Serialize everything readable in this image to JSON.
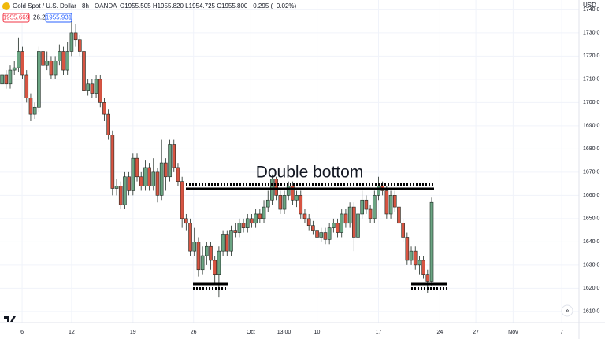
{
  "header": {
    "symbol": "Gold Spot / U.S. Dollar · 8h · OANDA",
    "ohlc": "O1955.505 H1955.820 L1954.725 C1955.800 −0.295 (−0.02%)",
    "sell": "1955.669",
    "spread": "26.2",
    "buy": "1955.931",
    "currency": "USD"
  },
  "chart_data": {
    "type": "candlestick",
    "annotation": "Double bottom",
    "up_color": "#6ba583",
    "down_color": "#d75442",
    "grid": true,
    "xlim": [
      -0.5,
      141
    ],
    "xticks": [
      {
        "value": 4.9,
        "label": "6"
      },
      {
        "value": 17,
        "label": "12"
      },
      {
        "value": 32,
        "label": "19"
      },
      {
        "value": 46.8,
        "label": "26"
      },
      {
        "value": 60.8,
        "label": "Oct"
      },
      {
        "value": 68.9,
        "label": "13:00"
      },
      {
        "value": 77,
        "label": "10"
      },
      {
        "value": 92,
        "label": "17"
      },
      {
        "value": 107,
        "label": "24"
      },
      {
        "value": 115.8,
        "label": "27"
      },
      {
        "value": 124.9,
        "label": "Nov"
      },
      {
        "value": 136.8,
        "label": "7"
      }
    ],
    "ylim": [
      1605.2,
      1744.2
    ],
    "yticks": [
      {
        "value": 1610,
        "label": "1610.0"
      },
      {
        "value": 1620,
        "label": "1620.0"
      },
      {
        "value": 1630,
        "label": "1630.0"
      },
      {
        "value": 1640,
        "label": "1640.0"
      },
      {
        "value": 1650,
        "label": "1650.0"
      },
      {
        "value": 1660,
        "label": "1660.0"
      },
      {
        "value": 1670,
        "label": "1670.0"
      },
      {
        "value": 1680,
        "label": "1680.0"
      },
      {
        "value": 1690,
        "label": "1690.0"
      },
      {
        "value": 1700,
        "label": "1700.0"
      },
      {
        "value": 1710,
        "label": "1710.0"
      },
      {
        "value": 1720,
        "label": "1720.0"
      },
      {
        "value": 1730,
        "label": "1730.0"
      },
      {
        "value": 1740,
        "label": "1740.0"
      }
    ],
    "open": [
      1708,
      1712,
      1708,
      1714,
      1715,
      1722,
      1712,
      1702,
      1695,
      1698,
      1722,
      1716,
      1718,
      1712,
      1718,
      1722,
      1714,
      1722,
      1730,
      1727,
      1722,
      1705,
      1708,
      1704,
      1710,
      1700,
      1695,
      1686,
      1663,
      1664,
      1656,
      1668,
      1662,
      1676,
      1668,
      1664,
      1672,
      1664,
      1670,
      1660,
      1674,
      1668,
      1682,
      1672,
      1666,
      1650,
      1648,
      1636,
      1640,
      1628,
      1634,
      1638,
      1632,
      1626,
      1636,
      1643,
      1636,
      1645,
      1644,
      1648,
      1646,
      1650,
      1648,
      1652,
      1650,
      1655,
      1658,
      1667,
      1660,
      1654,
      1660,
      1664,
      1658,
      1660,
      1652,
      1650,
      1647,
      1645,
      1642,
      1644,
      1641,
      1646,
      1648,
      1644,
      1652,
      1648,
      1655,
      1642,
      1652,
      1658,
      1654,
      1650,
      1660,
      1664,
      1662,
      1652,
      1660,
      1655,
      1648,
      1642,
      1632,
      1636,
      1630,
      1632,
      1626,
      1623
    ],
    "high": [
      1715,
      1714,
      1716,
      1718,
      1728,
      1724,
      1714,
      1704,
      1700,
      1724,
      1724,
      1722,
      1720,
      1720,
      1725,
      1724,
      1726,
      1735,
      1734,
      1729,
      1724,
      1710,
      1710,
      1712,
      1712,
      1702,
      1697,
      1688,
      1667,
      1666,
      1670,
      1670,
      1678,
      1678,
      1670,
      1675,
      1674,
      1676,
      1672,
      1684,
      1676,
      1684,
      1684,
      1674,
      1668,
      1652,
      1650,
      1646,
      1642,
      1638,
      1640,
      1640,
      1634,
      1638,
      1645,
      1645,
      1647,
      1648,
      1650,
      1650,
      1652,
      1652,
      1654,
      1654,
      1658,
      1662,
      1669,
      1668,
      1662,
      1662,
      1666,
      1666,
      1662,
      1662,
      1654,
      1652,
      1649,
      1647,
      1646,
      1646,
      1648,
      1650,
      1650,
      1654,
      1654,
      1657,
      1657,
      1654,
      1662,
      1660,
      1656,
      1662,
      1668,
      1666,
      1664,
      1662,
      1662,
      1657,
      1650,
      1644,
      1638,
      1638,
      1634,
      1634,
      1628,
      1659
    ],
    "low": [
      1705,
      1706,
      1706,
      1712,
      1713,
      1710,
      1700,
      1692,
      1693,
      1696,
      1714,
      1714,
      1710,
      1710,
      1716,
      1712,
      1712,
      1720,
      1724,
      1720,
      1703,
      1703,
      1702,
      1702,
      1698,
      1692,
      1684,
      1660,
      1660,
      1654,
      1654,
      1660,
      1660,
      1666,
      1662,
      1662,
      1662,
      1662,
      1657,
      1658,
      1662,
      1666,
      1670,
      1664,
      1646,
      1645,
      1634,
      1634,
      1625,
      1626,
      1630,
      1628,
      1622,
      1616,
      1634,
      1634,
      1634,
      1642,
      1642,
      1644,
      1644,
      1646,
      1646,
      1648,
      1648,
      1653,
      1656,
      1658,
      1652,
      1652,
      1658,
      1656,
      1655,
      1650,
      1648,
      1645,
      1643,
      1640,
      1640,
      1639,
      1639,
      1644,
      1642,
      1642,
      1646,
      1646,
      1636,
      1640,
      1650,
      1652,
      1648,
      1648,
      1658,
      1660,
      1650,
      1650,
      1653,
      1646,
      1640,
      1630,
      1630,
      1628,
      1626,
      1624,
      1618,
      1621
    ],
    "close": [
      1712,
      1708,
      1714,
      1715,
      1722,
      1712,
      1702,
      1695,
      1698,
      1722,
      1716,
      1718,
      1712,
      1718,
      1722,
      1714,
      1722,
      1730,
      1727,
      1722,
      1705,
      1708,
      1704,
      1710,
      1700,
      1695,
      1686,
      1663,
      1664,
      1656,
      1668,
      1662,
      1676,
      1668,
      1664,
      1672,
      1664,
      1670,
      1660,
      1674,
      1668,
      1682,
      1672,
      1666,
      1650,
      1648,
      1636,
      1640,
      1628,
      1634,
      1638,
      1632,
      1626,
      1636,
      1643,
      1636,
      1645,
      1644,
      1648,
      1646,
      1650,
      1648,
      1652,
      1650,
      1655,
      1658,
      1667,
      1660,
      1654,
      1660,
      1664,
      1658,
      1660,
      1652,
      1650,
      1647,
      1645,
      1642,
      1644,
      1641,
      1646,
      1648,
      1644,
      1652,
      1648,
      1655,
      1642,
      1652,
      1658,
      1654,
      1650,
      1660,
      1664,
      1662,
      1652,
      1660,
      1655,
      1648,
      1642,
      1632,
      1636,
      1630,
      1632,
      1626,
      1623,
      1657
    ]
  }
}
